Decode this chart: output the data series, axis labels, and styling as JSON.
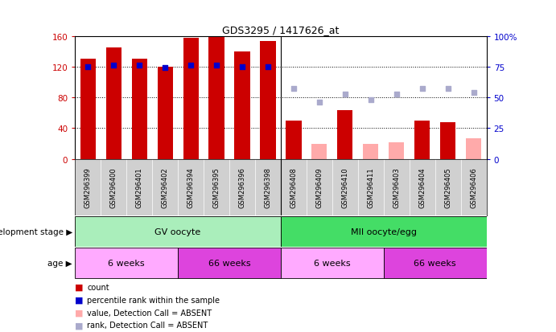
{
  "title": "GDS3295 / 1417626_at",
  "samples": [
    "GSM296399",
    "GSM296400",
    "GSM296401",
    "GSM296402",
    "GSM296394",
    "GSM296395",
    "GSM296396",
    "GSM296398",
    "GSM296408",
    "GSM296409",
    "GSM296410",
    "GSM296411",
    "GSM296403",
    "GSM296404",
    "GSM296405",
    "GSM296406"
  ],
  "counts": [
    130,
    145,
    130,
    120,
    157,
    160,
    140,
    153,
    50,
    null,
    63,
    null,
    null,
    50,
    48,
    null
  ],
  "counts_absent": [
    null,
    null,
    null,
    null,
    null,
    null,
    null,
    null,
    null,
    20,
    null,
    20,
    22,
    null,
    null,
    27
  ],
  "pct_ranks": [
    75,
    76,
    76,
    74,
    76,
    76,
    75,
    75,
    null,
    null,
    null,
    null,
    null,
    null,
    null,
    null
  ],
  "pct_ranks_absent": [
    null,
    null,
    null,
    null,
    null,
    null,
    null,
    null,
    57,
    46,
    53,
    48,
    53,
    57,
    57,
    54
  ],
  "ylim_left": [
    0,
    160
  ],
  "yticks_left": [
    0,
    40,
    80,
    120,
    160
  ],
  "ytick_labels_left": [
    "0",
    "40",
    "80",
    "120",
    "160"
  ],
  "yticks_right": [
    0,
    25,
    50,
    75,
    100
  ],
  "ytick_labels_right": [
    "0",
    "25",
    "50",
    "75",
    "100%"
  ],
  "bar_color_present": "#cc0000",
  "bar_color_absent": "#ffaaaa",
  "dot_color_present": "#0000cc",
  "dot_color_absent": "#aaaacc",
  "dev_stage_groups": [
    {
      "label": "GV oocyte",
      "start": 0,
      "end": 8,
      "color": "#aaeebb"
    },
    {
      "label": "MII oocyte/egg",
      "start": 8,
      "end": 16,
      "color": "#44dd66"
    }
  ],
  "age_groups": [
    {
      "label": "6 weeks",
      "start": 0,
      "end": 4,
      "color": "#ffaaff"
    },
    {
      "label": "66 weeks",
      "start": 4,
      "end": 8,
      "color": "#dd44dd"
    },
    {
      "label": "6 weeks",
      "start": 8,
      "end": 12,
      "color": "#ffaaff"
    },
    {
      "label": "66 weeks",
      "start": 12,
      "end": 16,
      "color": "#dd44dd"
    }
  ],
  "legend_items": [
    {
      "label": "count",
      "color": "#cc0000"
    },
    {
      "label": "percentile rank within the sample",
      "color": "#0000cc"
    },
    {
      "label": "value, Detection Call = ABSENT",
      "color": "#ffaaaa"
    },
    {
      "label": "rank, Detection Call = ABSENT",
      "color": "#aaaacc"
    }
  ],
  "dev_stage_label": "development stage",
  "age_label": "age",
  "fig_width": 6.91,
  "fig_height": 4.14,
  "dpi": 100
}
